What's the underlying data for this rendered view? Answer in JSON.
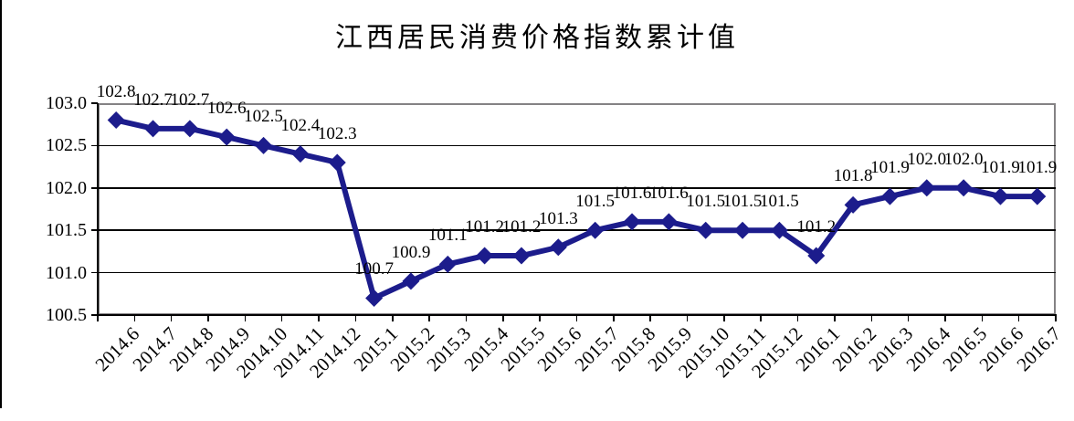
{
  "chart_data": {
    "type": "line",
    "title": "江西居民消费价格指数累计值",
    "x": [
      "2014.6",
      "2014.7",
      "2014.8",
      "2014.9",
      "2014.10",
      "2014.11",
      "2014.12",
      "2015.1",
      "2015.2",
      "2015.3",
      "2015.4",
      "2015.5",
      "2015.6",
      "2015.7",
      "2015.8",
      "2015.9",
      "2015.10",
      "2015.11",
      "2015.12",
      "2016.1",
      "2016.2",
      "2016.3",
      "2016.4",
      "2016.5",
      "2016.6",
      "2016.7"
    ],
    "series": [
      {
        "name": "累计值",
        "values": [
          102.8,
          102.7,
          102.7,
          102.6,
          102.5,
          102.4,
          102.3,
          100.7,
          100.9,
          101.1,
          101.2,
          101.2,
          101.3,
          101.5,
          101.6,
          101.6,
          101.5,
          101.5,
          101.5,
          101.2,
          101.8,
          101.9,
          102.0,
          102.0,
          101.9,
          101.9
        ],
        "labels": [
          "102.8",
          "102.7",
          "102.7",
          "102.6",
          "102.5",
          "102.4",
          "102.3",
          "100.7",
          "100.9",
          "101.1",
          "101.2",
          "101.2",
          "101.3",
          "101.5",
          "101.6",
          "101.6",
          "101.5",
          "101.5",
          "101.5",
          "101.2",
          "101.8",
          "101.9",
          "102.0",
          "102.0",
          "101.9",
          "101.9"
        ]
      }
    ],
    "ylim": [
      100.5,
      103.0
    ],
    "yticks": [
      103.0,
      102.5,
      102.0,
      101.5,
      101.0,
      100.5
    ],
    "ytick_labels": [
      "103.0",
      "102.5",
      "102.0",
      "101.5",
      "101.0",
      "100.5"
    ],
    "grid": true,
    "legend": "none",
    "marker": "diamond",
    "xlabel": "",
    "ylabel": ""
  },
  "colors": {
    "series": "#1C1C8C",
    "plot_border": "#848284",
    "grid": "#000000",
    "axis": "#000000",
    "text": "#000000",
    "background": "#FFFFFF"
  }
}
